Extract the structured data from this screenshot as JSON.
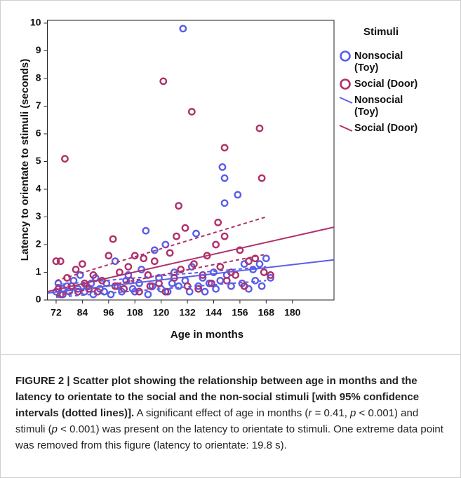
{
  "chart_data": {
    "type": "scatter",
    "x_label": "Age in months",
    "y_label": "Latency to orientate to stimuli (seconds)",
    "xlim": [
      68,
      199
    ],
    "ylim": [
      0,
      10.1
    ],
    "xticks": [
      72,
      84,
      96,
      108,
      120,
      132,
      144,
      156,
      168,
      180
    ],
    "yticks": [
      0,
      1,
      2,
      3,
      4,
      5,
      6,
      7,
      8,
      9,
      10
    ],
    "legend_title": "Stimuli",
    "legend_position": "right",
    "series": [
      {
        "name": "Nonsocial (Toy)",
        "color": "#5a5ee8",
        "x": [
          72,
          73,
          74,
          75,
          77,
          78,
          80,
          82,
          83,
          85,
          86,
          88,
          89,
          90,
          92,
          94,
          95,
          97,
          99,
          100,
          102,
          104,
          105,
          107,
          108,
          110,
          111,
          113,
          114,
          116,
          117,
          119,
          120,
          122,
          123,
          125,
          126,
          128,
          130,
          131,
          133,
          134,
          136,
          137,
          139,
          140,
          142,
          144,
          145,
          147,
          148,
          149,
          149,
          150,
          152,
          155,
          157,
          158,
          160,
          162,
          163,
          165,
          166,
          168,
          170
        ],
        "values": [
          0.3,
          0.6,
          0.2,
          0.4,
          0.5,
          0.3,
          0.7,
          0.4,
          0.9,
          0.3,
          0.5,
          0.6,
          0.2,
          0.8,
          0.4,
          0.3,
          0.6,
          0.2,
          1.4,
          0.5,
          0.3,
          0.7,
          0.9,
          0.4,
          0.3,
          0.6,
          1.1,
          2.5,
          0.2,
          0.5,
          1.8,
          0.8,
          0.4,
          2.0,
          0.3,
          0.6,
          1.0,
          0.5,
          9.8,
          0.7,
          0.3,
          1.2,
          2.4,
          0.5,
          0.8,
          0.3,
          0.6,
          1.0,
          0.4,
          0.7,
          4.8,
          4.4,
          3.5,
          0.9,
          0.5,
          3.8,
          0.6,
          1.3,
          0.4,
          1.1,
          0.7,
          1.3,
          0.5,
          1.5,
          0.8
        ]
      },
      {
        "name": "Social (Door)",
        "color": "#b0306a",
        "x": [
          72,
          73,
          74,
          75,
          76,
          77,
          79,
          81,
          82,
          84,
          85,
          87,
          89,
          91,
          93,
          96,
          98,
          99,
          101,
          103,
          105,
          106,
          108,
          110,
          112,
          114,
          115,
          117,
          119,
          121,
          122,
          124,
          126,
          127,
          128,
          129,
          131,
          132,
          134,
          135,
          137,
          139,
          141,
          143,
          145,
          146,
          147,
          149,
          149,
          150,
          152,
          154,
          156,
          158,
          160,
          163,
          165,
          166,
          167,
          170
        ],
        "values": [
          1.4,
          0.4,
          1.4,
          0.2,
          5.1,
          0.8,
          0.5,
          1.1,
          0.3,
          1.3,
          0.6,
          0.4,
          0.9,
          0.3,
          0.7,
          1.6,
          2.2,
          0.5,
          1.0,
          0.4,
          1.2,
          0.7,
          1.6,
          0.3,
          1.5,
          0.9,
          0.5,
          1.4,
          0.6,
          7.9,
          0.3,
          1.7,
          0.8,
          2.3,
          3.4,
          1.1,
          2.6,
          0.5,
          6.8,
          1.3,
          0.4,
          0.9,
          1.6,
          0.6,
          2.0,
          2.8,
          1.2,
          5.5,
          2.3,
          0.7,
          1.0,
          0.9,
          1.8,
          0.5,
          1.4,
          1.5,
          6.2,
          4.4,
          1.0,
          0.9
        ]
      }
    ],
    "fit_lines": [
      {
        "name": "Nonsocial (Toy)",
        "color": "#5a5ee8",
        "x": [
          68,
          199
        ],
        "values": [
          0.25,
          1.45
        ]
      },
      {
        "name": "Social (Door)",
        "color": "#b0306a",
        "x": [
          68,
          199
        ],
        "values": [
          0.3,
          2.63
        ]
      }
    ],
    "ci_lines": [
      {
        "color": "#5a5ee8",
        "x": [
          72,
          168
        ],
        "values": [
          0.55,
          1.2
        ]
      },
      {
        "color": "#5a5ee8",
        "x": [
          72,
          168
        ],
        "values": [
          0.1,
          0.7
        ]
      },
      {
        "color": "#b0306a",
        "x": [
          72,
          168
        ],
        "values": [
          0.7,
          3.0
        ]
      },
      {
        "color": "#b0306a",
        "x": [
          72,
          168
        ],
        "values": [
          0.15,
          1.65
        ]
      }
    ]
  },
  "caption": {
    "label": "FIGURE 2 | Scatter plot showing the relationship between age in months and the latency to orientate to the social and the non-social stimuli [with 95% confidence intervals (dotted lines)].",
    "body": [
      {
        "text": " A significant effect of age in months (",
        "italic": false
      },
      {
        "text": "r",
        "italic": true
      },
      {
        "text": " = 0.41, ",
        "italic": false
      },
      {
        "text": "p",
        "italic": true
      },
      {
        "text": " < 0.001) and stimuli (",
        "italic": false
      },
      {
        "text": "p",
        "italic": true
      },
      {
        "text": " < 0.001) was present on the latency to orientate to stimuli. One extreme data point was removed from this figure (latency to orientate: 19.8 s).",
        "italic": false
      }
    ]
  }
}
